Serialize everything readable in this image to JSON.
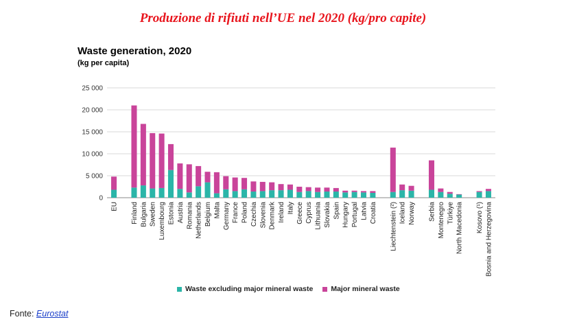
{
  "page": {
    "heading": "Produzione di rifiuti nell’UE nel 2020 (kg/pro capite)",
    "source_label": "Fonte:",
    "source_link": "Eurostat"
  },
  "chart_data": {
    "type": "bar",
    "stacked": true,
    "title": "Waste generation, 2020",
    "subtitle": "(kg per capita)",
    "xlabel": "",
    "ylabel": "",
    "ylim": [
      0,
      25000
    ],
    "yticks": [
      0,
      5000,
      10000,
      15000,
      20000,
      25000
    ],
    "ytick_labels": [
      "0",
      "5 000",
      "10 000",
      "15 000",
      "20 000",
      "25 000"
    ],
    "grid": "horizontal",
    "legend_position": "bottom",
    "categories": [
      "EU",
      "Finland",
      "Bulgaria",
      "Sweden",
      "Luxembourg",
      "Estonia",
      "Austria",
      "Romania",
      "Netherlands",
      "Belgium",
      "Malta",
      "Germany",
      "France",
      "Poland",
      "Czechia",
      "Slovenia",
      "Denmark",
      "Ireland",
      "Italy",
      "Greece",
      "Cyprus",
      "Lithuania",
      "Slovakia",
      "Spain",
      "Hungary",
      "Portugal",
      "Latvia",
      "Croatia",
      "Liechtenstein (²)",
      "Iceland",
      "Norway",
      "Serbia",
      "Montenegro",
      "Türkiye",
      "North Macedonia",
      "Kosovo (¹)",
      "Bosnia and Herzegovina"
    ],
    "groups": [
      1,
      27,
      3,
      4,
      2
    ],
    "series": [
      {
        "name": "Waste excluding major mineral waste",
        "color": "#2bb5a8",
        "values": [
          1800,
          2300,
          2800,
          2100,
          2200,
          6300,
          2000,
          1200,
          2600,
          3500,
          1000,
          1900,
          1500,
          1900,
          1400,
          1500,
          1700,
          1700,
          1800,
          1300,
          1500,
          1300,
          1400,
          1400,
          1200,
          1300,
          1200,
          1100,
          1300,
          1700,
          1600,
          1800,
          1300,
          900,
          700,
          1300,
          1500
        ]
      },
      {
        "name": "Major mineral waste",
        "color": "#c9449a",
        "values": [
          3000,
          18700,
          14000,
          12600,
          12400,
          5900,
          5800,
          6400,
          4600,
          2400,
          4800,
          3000,
          3100,
          2600,
          2300,
          2100,
          1800,
          1400,
          1200,
          1200,
          900,
          1000,
          900,
          800,
          400,
          300,
          300,
          400,
          10100,
          1300,
          1100,
          6700,
          800,
          400,
          100,
          200,
          500
        ]
      }
    ]
  }
}
